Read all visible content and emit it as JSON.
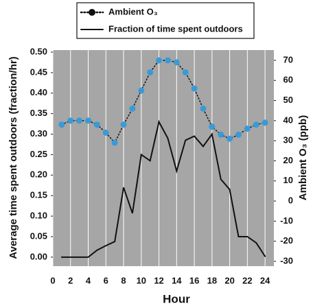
{
  "chart_data": {
    "type": "line",
    "x": [
      1,
      2,
      3,
      4,
      5,
      6,
      7,
      8,
      9,
      10,
      11,
      12,
      13,
      14,
      15,
      16,
      17,
      18,
      19,
      20,
      21,
      22,
      23,
      24
    ],
    "series": [
      {
        "name": "Ambient O₃",
        "color": "#3a9ad6",
        "axis": "y2",
        "line_style": "dotted",
        "marker": true,
        "values": [
          38,
          40,
          40,
          40,
          38,
          34,
          29,
          38,
          46,
          55,
          64,
          70,
          70,
          69,
          64,
          56,
          46,
          37,
          33,
          31,
          33,
          36,
          38,
          39
        ]
      },
      {
        "name": "Fraction of time spent outdoors",
        "color": "#111111",
        "axis": "y",
        "line_style": "solid",
        "marker": false,
        "values": [
          0,
          0,
          0,
          0,
          0.017,
          0.028,
          0.038,
          0.17,
          0.107,
          0.25,
          0.235,
          0.33,
          0.29,
          0.21,
          0.285,
          0.295,
          0.27,
          0.3,
          0.19,
          0.165,
          0.05,
          0.05,
          0.035,
          0.002
        ]
      }
    ],
    "x_label": "Hour",
    "y_label": "Average time spent outdoors (fraction/hr)",
    "y2_label": "Ambient O₃ (ppb)",
    "xlim": [
      0,
      25
    ],
    "xticks": [
      0,
      2,
      4,
      6,
      8,
      10,
      12,
      14,
      16,
      18,
      20,
      22,
      24
    ],
    "ylim": [
      -0.022,
      0.505
    ],
    "yticks": [
      {
        "value": 0,
        "label": "0.00"
      },
      {
        "value": 0.05,
        "label": "0.05"
      },
      {
        "value": 0.1,
        "label": "0.10"
      },
      {
        "value": 0.15,
        "label": "0.15"
      },
      {
        "value": 0.2,
        "label": "0.20"
      },
      {
        "value": 0.25,
        "label": "0.25"
      },
      {
        "value": 0.3,
        "label": "0.30"
      },
      {
        "value": 0.35,
        "label": "0.35"
      },
      {
        "value": 0.4,
        "label": "0.40"
      },
      {
        "value": 0.45,
        "label": "0.45"
      },
      {
        "value": 0.5,
        "label": "0.50"
      }
    ],
    "y2lim": [
      -32.4,
      75.1
    ],
    "y2ticks": [
      -30,
      -20,
      -10,
      0,
      10,
      20,
      30,
      40,
      50,
      60,
      70
    ],
    "grid": true,
    "plot_background": "#a6a6a6",
    "legend": "top"
  }
}
